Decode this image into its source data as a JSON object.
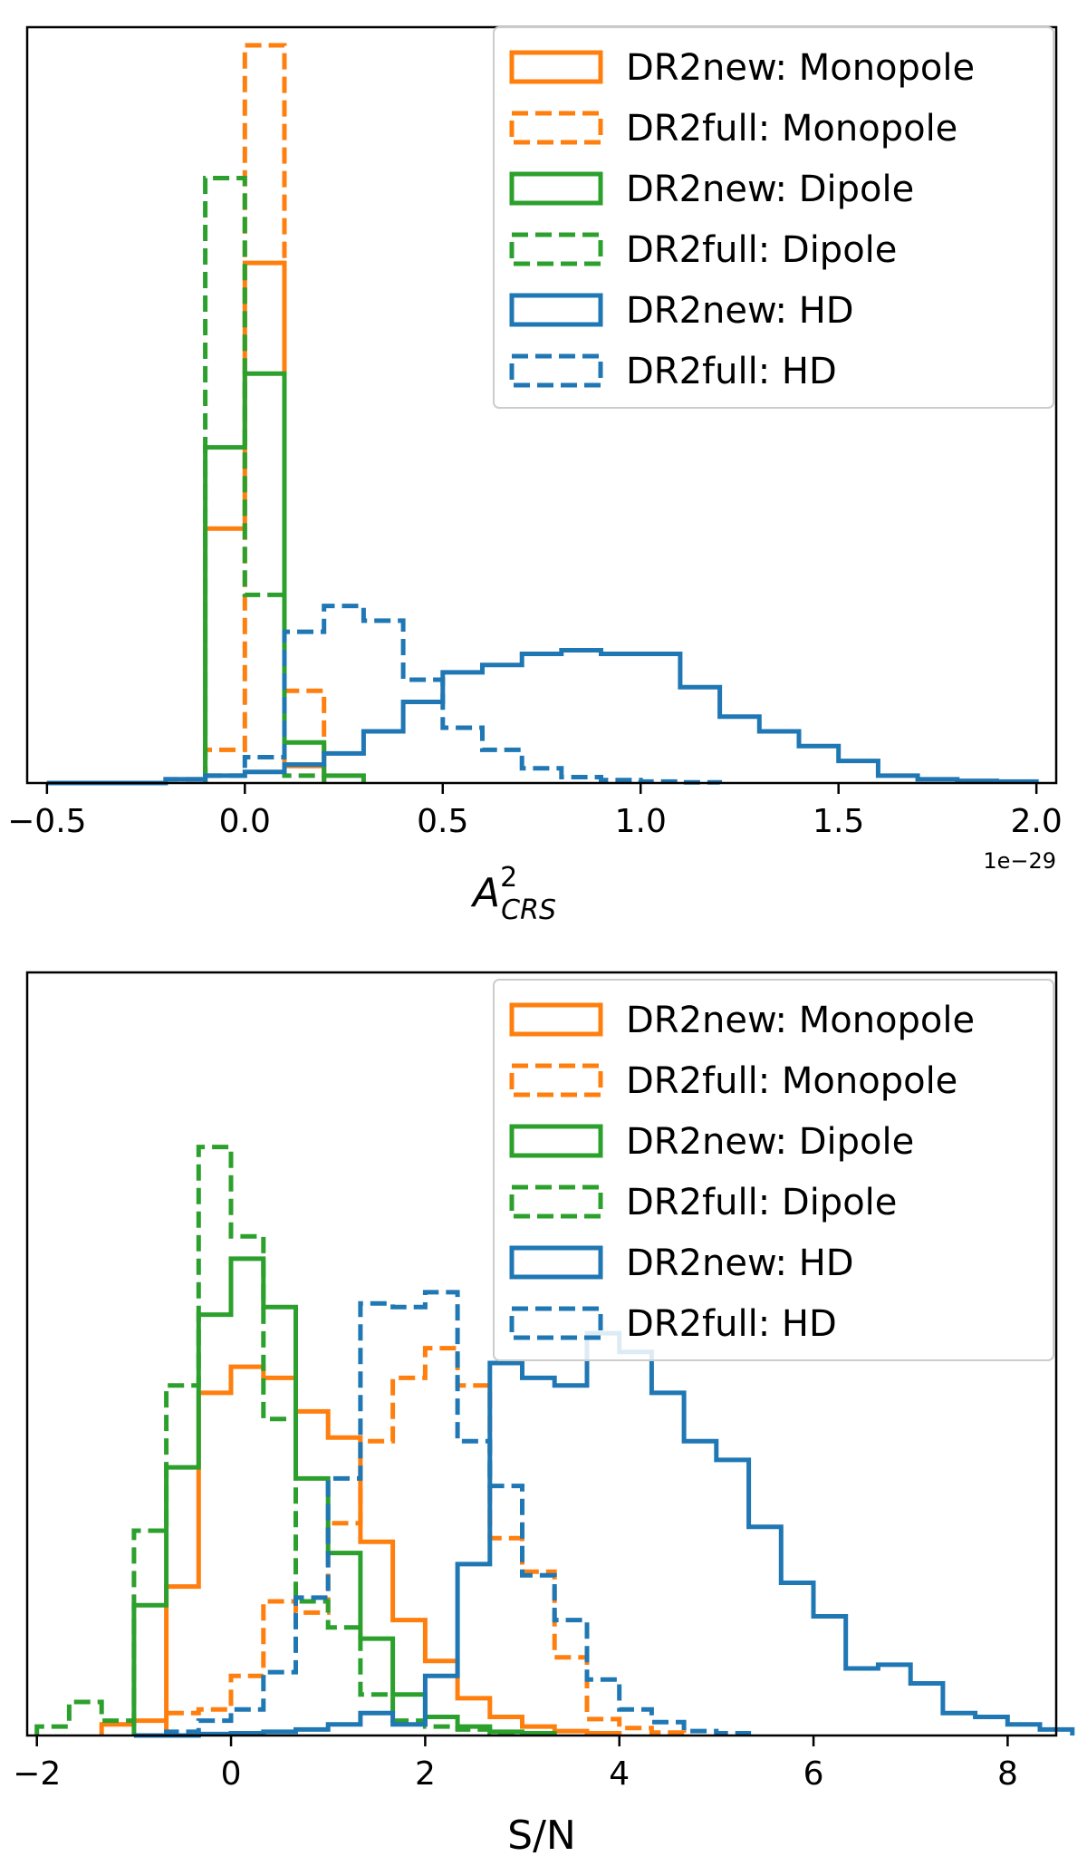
{
  "colors": {
    "monopole": "#ff7f0e",
    "dipole": "#2ca02c",
    "hd": "#1f77b4",
    "axes": "#000000",
    "legend_border": "#cccccc"
  },
  "chart_data": [
    {
      "type": "histogram",
      "xlabel": "A",
      "xlabel_sup": "2",
      "xlabel_sub": "CRS",
      "x_offset_text": "1e−29",
      "x_multiplier": 1e-29,
      "xlim": [
        -0.55,
        2.05
      ],
      "xticks": [
        -0.5,
        0.0,
        0.5,
        1.0,
        1.5,
        2.0
      ],
      "xtick_labels": [
        "−0.5",
        "0.0",
        "0.5",
        "1.0",
        "1.5",
        "2.0"
      ],
      "y_ticks_visible": false,
      "ylim": [
        0,
        1.0
      ],
      "legend_location": "upper right",
      "bin_width": 0.1,
      "series": [
        {
          "name": "DR2new: Monopole",
          "color": "monopole",
          "linestyle": "solid",
          "bin_start": -0.1,
          "values": [
            0.345,
            0.705,
            0.023
          ]
        },
        {
          "name": "DR2full: Monopole",
          "color": "monopole",
          "linestyle": "dashed",
          "bin_start": -0.1,
          "values": [
            0.045,
            1.0,
            0.125
          ]
        },
        {
          "name": "DR2new: Dipole",
          "color": "dipole",
          "linestyle": "solid",
          "bin_start": -0.1,
          "values": [
            0.455,
            0.555,
            0.055,
            0.01
          ]
        },
        {
          "name": "DR2full: Dipole",
          "color": "dipole",
          "linestyle": "dashed",
          "bin_start": -0.1,
          "values": [
            0.82,
            0.255,
            0.01
          ]
        },
        {
          "name": "DR2new: HD",
          "color": "hd",
          "linestyle": "solid",
          "bin_start": -0.5,
          "values": [
            0.0,
            0.0,
            0.0,
            0.005,
            0.01,
            0.015,
            0.025,
            0.04,
            0.07,
            0.11,
            0.15,
            0.16,
            0.175,
            0.18,
            0.175,
            0.175,
            0.13,
            0.09,
            0.07,
            0.05,
            0.03,
            0.01,
            0.005,
            0.003,
            0.002
          ]
        },
        {
          "name": "DR2full: HD",
          "color": "hd",
          "linestyle": "dashed",
          "bin_start": -0.2,
          "values": [
            0.005,
            0.01,
            0.035,
            0.205,
            0.24,
            0.22,
            0.14,
            0.075,
            0.045,
            0.02,
            0.008,
            0.004,
            0.002,
            0.001
          ]
        }
      ]
    },
    {
      "type": "histogram",
      "xlabel": "S/N",
      "xlim": [
        -2.1,
        8.5
      ],
      "xticks": [
        -2,
        0,
        2,
        4,
        6,
        8
      ],
      "xtick_labels": [
        "−2",
        "0",
        "2",
        "4",
        "6",
        "8"
      ],
      "y_ticks_visible": false,
      "ylim": [
        0,
        1.0
      ],
      "legend_location": "upper right",
      "bin_width": 0.3333,
      "series": [
        {
          "name": "DR2new: Monopole",
          "color": "monopole",
          "linestyle": "solid",
          "bin_start": -1.3333,
          "values": [
            0.015,
            0.02,
            0.2,
            0.46,
            0.495,
            0.48,
            0.435,
            0.4,
            0.26,
            0.155,
            0.1,
            0.05,
            0.025,
            0.012,
            0.006,
            0.003
          ]
        },
        {
          "name": "DR2full: Monopole",
          "color": "monopole",
          "linestyle": "dashed",
          "bin_start": -0.6667,
          "values": [
            0.03,
            0.035,
            0.08,
            0.18,
            0.165,
            0.285,
            0.395,
            0.48,
            0.52,
            0.47,
            0.265,
            0.22,
            0.105,
            0.022,
            0.01,
            0.004
          ]
        },
        {
          "name": "DR2new: Dipole",
          "color": "dipole",
          "linestyle": "solid",
          "bin_start": -1.0,
          "values": [
            0.175,
            0.36,
            0.565,
            0.64,
            0.575,
            0.345,
            0.245,
            0.13,
            0.055,
            0.025,
            0.012,
            0.005,
            0.003
          ]
        },
        {
          "name": "DR2full: Dipole",
          "color": "dipole",
          "linestyle": "dashed",
          "bin_start": -2.0,
          "values": [
            0.012,
            0.045,
            0.02,
            0.275,
            0.47,
            0.79,
            0.67,
            0.425,
            0.18,
            0.145,
            0.055,
            0.02,
            0.012,
            0.008,
            0.004
          ]
        },
        {
          "name": "DR2new: HD",
          "color": "hd",
          "linestyle": "solid",
          "bin_start": -1.0,
          "values": [
            0.0,
            0.0,
            0.002,
            0.003,
            0.005,
            0.008,
            0.015,
            0.03,
            0.015,
            0.08,
            0.23,
            0.5,
            0.48,
            0.47,
            0.54,
            0.515,
            0.46,
            0.395,
            0.37,
            0.28,
            0.205,
            0.16,
            0.09,
            0.095,
            0.07,
            0.03,
            0.025,
            0.015,
            0.008
          ]
        },
        {
          "name": "DR2full: HD",
          "color": "hd",
          "linestyle": "dashed",
          "bin_start": -0.6667,
          "values": [
            0.005,
            0.02,
            0.035,
            0.085,
            0.185,
            0.345,
            0.58,
            0.575,
            0.595,
            0.395,
            0.335,
            0.215,
            0.155,
            0.075,
            0.035,
            0.018,
            0.006,
            0.003
          ]
        }
      ]
    }
  ]
}
